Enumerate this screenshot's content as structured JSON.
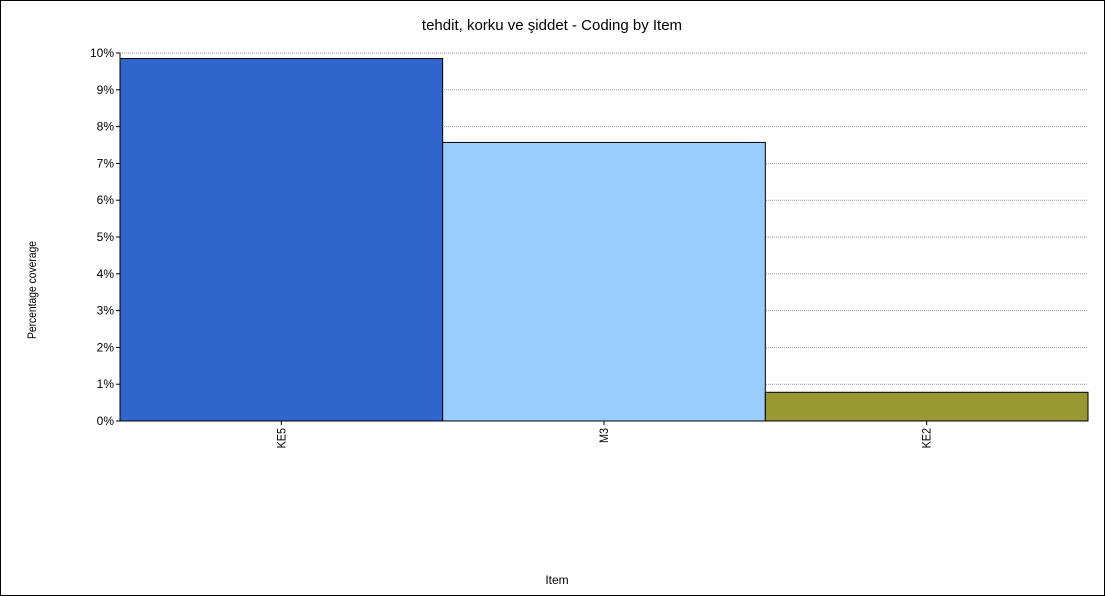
{
  "chart_data": {
    "type": "bar",
    "title": "tehdit, korku ve şiddet - Coding by Item",
    "xlabel": "Item",
    "ylabel": "Percentage coverage",
    "categories": [
      "KE5",
      "M3",
      "KE2"
    ],
    "values": [
      9.85,
      7.57,
      0.78
    ],
    "bar_colors": [
      "#3066cc",
      "#99ccff",
      "#999933"
    ],
    "ylim": [
      0,
      10
    ],
    "yticks": [
      0,
      1,
      2,
      3,
      4,
      5,
      6,
      7,
      8,
      9,
      10
    ],
    "ytick_suffix": "%",
    "grid": true,
    "legend": "none"
  }
}
